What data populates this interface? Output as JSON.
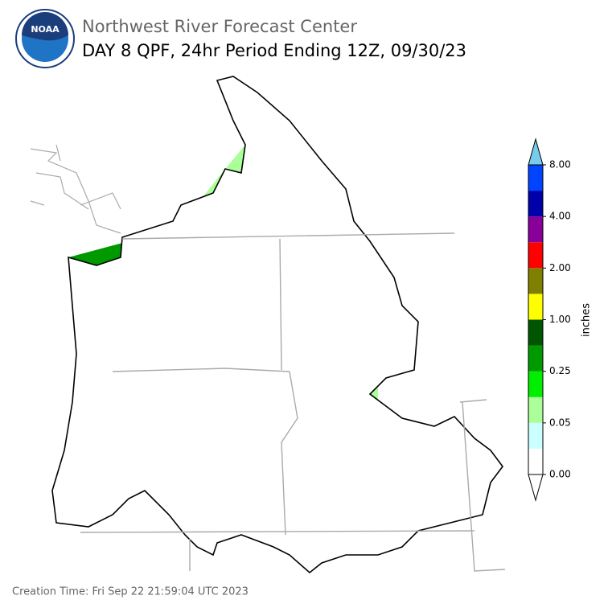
{
  "header": {
    "title": "Northwest River Forecast Center",
    "subtitle": "DAY 8 QPF, 24hr Period Ending 12Z, 09/30/23"
  },
  "logo": {
    "text": "NOAA"
  },
  "colorbar": {
    "label": "inches",
    "colors": [
      "#ffffff",
      "#ccffff",
      "#aaff99",
      "#00ee00",
      "#009900",
      "#005500",
      "#ffff00",
      "#808000",
      "#ff0000",
      "#880099",
      "#0000aa",
      "#0044ff"
    ],
    "under_color": "#ffffff",
    "over_color": "#77ccee",
    "ticks": [
      {
        "value": 0,
        "label": "0.00"
      },
      {
        "value": 0.05,
        "label": "0.05"
      },
      {
        "value": 0.25,
        "label": "0.25"
      },
      {
        "value": 1,
        "label": "1.00"
      },
      {
        "value": 2,
        "label": "2.00"
      },
      {
        "value": 4,
        "label": "4.00"
      },
      {
        "value": 8,
        "label": "8.00"
      }
    ]
  },
  "footer": {
    "creation_time": "Creation Time: Fri Sep 22 21:59:04 UTC 2023"
  }
}
